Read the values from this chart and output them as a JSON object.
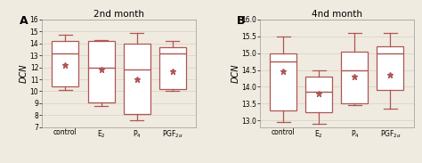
{
  "panel_A": {
    "title": "2nd month",
    "ylabel": "DCN",
    "ylim": [
      7,
      16
    ],
    "yticks": [
      7,
      8,
      9,
      10,
      11,
      12,
      13,
      14,
      15,
      16
    ],
    "categories": [
      "control",
      "E$_2$",
      "P$_4$",
      "PGF$_{2\\alpha}$"
    ],
    "boxes": [
      {
        "q1": 10.4,
        "median": 13.2,
        "q3": 14.2,
        "whislo": 10.1,
        "whishi": 14.7,
        "mean": 12.2
      },
      {
        "q1": 9.1,
        "median": 12.0,
        "q3": 14.2,
        "whislo": 8.8,
        "whishi": 14.3,
        "mean": 11.8
      },
      {
        "q1": 8.1,
        "median": 11.8,
        "q3": 14.0,
        "whislo": 7.6,
        "whishi": 14.85,
        "mean": 11.0
      },
      {
        "q1": 10.2,
        "median": 13.2,
        "q3": 13.7,
        "whislo": 10.05,
        "whishi": 14.2,
        "mean": 11.7
      }
    ]
  },
  "panel_B": {
    "title": "4nd month",
    "ylabel": "DCN",
    "ylim": [
      12.8,
      16.0
    ],
    "yticks": [
      13.0,
      13.5,
      14.0,
      14.5,
      15.0,
      15.5,
      16.0
    ],
    "categories": [
      "control",
      "E$_2$",
      "P$_4$",
      "PGF$_{2\\alpha}$"
    ],
    "boxes": [
      {
        "q1": 13.3,
        "median": 14.75,
        "q3": 15.0,
        "whislo": 12.95,
        "whishi": 15.5,
        "mean": 14.45
      },
      {
        "q1": 13.25,
        "median": 13.85,
        "q3": 14.3,
        "whislo": 12.9,
        "whishi": 14.5,
        "mean": 13.8
      },
      {
        "q1": 13.5,
        "median": 14.5,
        "q3": 15.05,
        "whislo": 13.45,
        "whishi": 15.6,
        "mean": 14.3
      },
      {
        "q1": 13.9,
        "median": 15.0,
        "q3": 15.2,
        "whislo": 13.35,
        "whishi": 15.6,
        "mean": 14.35
      }
    ]
  },
  "box_color": "#b05555",
  "box_facecolor": "#ffffff",
  "mean_marker": "*",
  "mean_color": "#b05555",
  "bg_color": "#f0ebe0",
  "grid_color": "#d8d0c0",
  "label_A": "A",
  "label_B": "B",
  "title_fontsize": 7.5,
  "label_fontsize": 9,
  "tick_fontsize": 5.5,
  "ylabel_fontsize": 7,
  "box_width": 0.75
}
